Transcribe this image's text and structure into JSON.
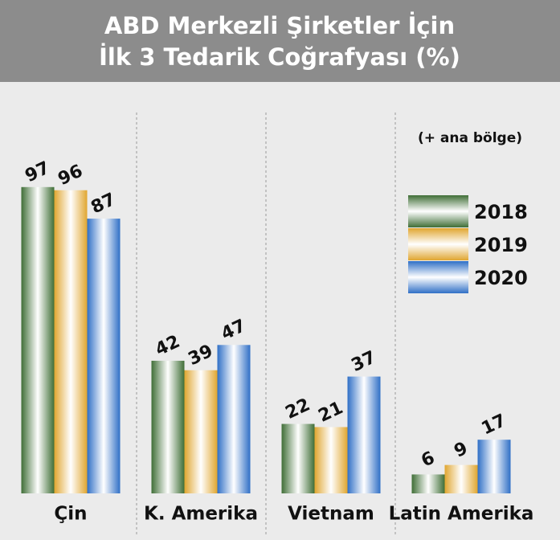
{
  "chart_data": {
    "type": "bar",
    "title": [
      "ABD Merkezli Şirketler İçin",
      "İlk 3 Tedarik Coğrafyası (%)"
    ],
    "note": "(+ ana bölge)",
    "categories": [
      "Çin",
      "K. Amerika",
      "Vietnam",
      "Latin Amerika"
    ],
    "series": [
      {
        "name": "2018",
        "color": "#3f6e36",
        "values": [
          97,
          42,
          22,
          6
        ]
      },
      {
        "name": "2019",
        "color": "#e0a630",
        "values": [
          96,
          39,
          21,
          9
        ]
      },
      {
        "name": "2020",
        "color": "#2f6fc6",
        "values": [
          87,
          47,
          37,
          17
        ]
      }
    ],
    "ylim": [
      0,
      100
    ]
  }
}
